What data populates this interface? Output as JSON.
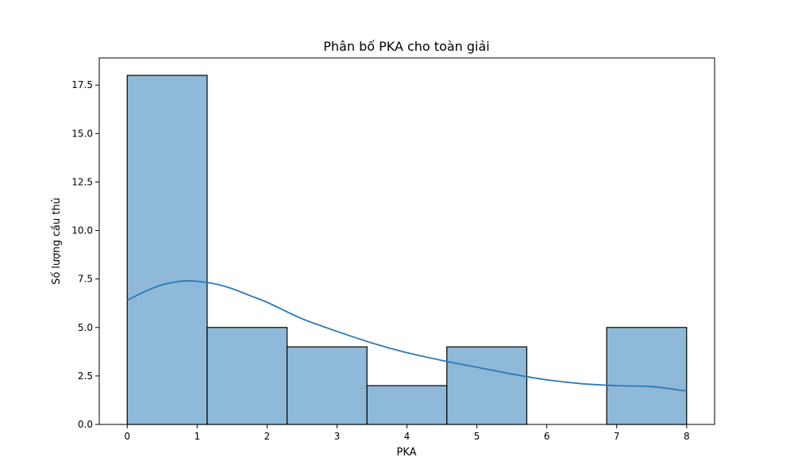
{
  "chart_data": {
    "type": "bar",
    "title": "Phân bố PKA cho toàn giải",
    "xlabel": "PKA",
    "ylabel": "Số lượng cầu thủ",
    "xlim": [
      -0.4,
      8.4
    ],
    "ylim": [
      0,
      18.9
    ],
    "xticks": [
      0,
      1,
      2,
      3,
      4,
      5,
      6,
      7,
      8
    ],
    "yticks": [
      0.0,
      2.5,
      5.0,
      7.5,
      10.0,
      12.5,
      15.0,
      17.5
    ],
    "ytick_labels": [
      "0.0",
      "2.5",
      "5.0",
      "7.5",
      "10.0",
      "12.5",
      "15.0",
      "17.5"
    ],
    "bins": [
      {
        "x0": 0.0,
        "x1": 1.143,
        "count": 18
      },
      {
        "x0": 1.143,
        "x1": 2.286,
        "count": 5
      },
      {
        "x0": 2.286,
        "x1": 3.429,
        "count": 4
      },
      {
        "x0": 3.429,
        "x1": 4.571,
        "count": 2
      },
      {
        "x0": 4.571,
        "x1": 5.714,
        "count": 4
      },
      {
        "x0": 5.714,
        "x1": 6.857,
        "count": 0
      },
      {
        "x0": 6.857,
        "x1": 8.0,
        "count": 5
      }
    ],
    "kde": {
      "x": [
        0,
        0.25,
        0.5,
        0.75,
        0.9,
        1.0,
        1.25,
        1.5,
        1.75,
        2.0,
        2.5,
        3.0,
        3.5,
        4.0,
        4.5,
        5.0,
        5.5,
        6.0,
        6.5,
        7.0,
        7.5,
        8.0
      ],
      "y": [
        6.4,
        6.85,
        7.2,
        7.38,
        7.4,
        7.38,
        7.25,
        7.0,
        6.65,
        6.3,
        5.45,
        4.8,
        4.2,
        3.7,
        3.3,
        2.95,
        2.6,
        2.3,
        2.1,
        2.0,
        1.95,
        1.72
      ]
    },
    "bar_color": "#8fb9d8",
    "kde_color": "#2a7ab8",
    "grid": false
  }
}
